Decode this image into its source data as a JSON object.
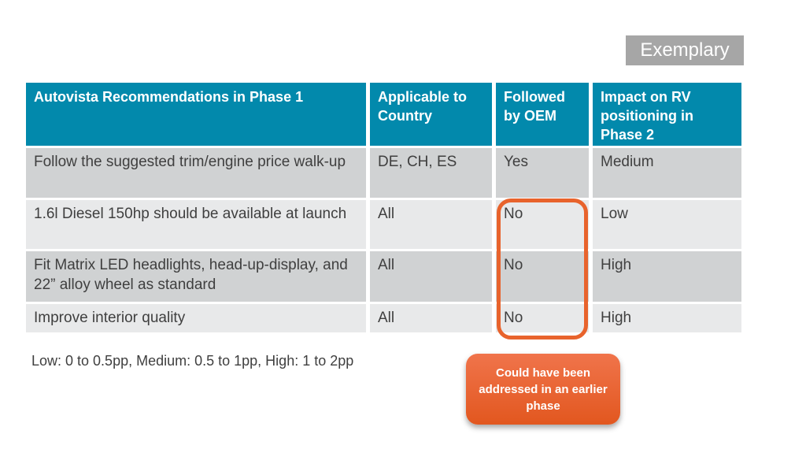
{
  "badge": {
    "label": "Exemplary"
  },
  "table": {
    "headers": [
      "Autovista Recommendations in Phase 1",
      "Applicable to Country",
      "Followed by OEM",
      "Impact on RV positioning in Phase 2"
    ],
    "rows": [
      [
        "Follow the suggested trim/engine price walk-up",
        "DE, CH, ES",
        "Yes",
        "Medium"
      ],
      [
        "1.6l Diesel 150hp should be available at launch",
        "All",
        "No",
        "Low"
      ],
      [
        "Fit Matrix LED headlights, head-up-display, and 22” alloy wheel as standard",
        "All",
        "No",
        "High"
      ],
      [
        "Improve interior quality",
        "All",
        "No",
        "High"
      ]
    ]
  },
  "footnote": "Low: 0 to 0.5pp, Medium: 0.5 to 1pp, High: 1 to 2pp",
  "callout": {
    "text": "Could have been addressed in an earlier phase"
  },
  "colors": {
    "header_bg": "#0289AC",
    "row_dark": "#D0D2D3",
    "row_light": "#E8E9EA",
    "accent_orange": "#E8632C",
    "badge_bg": "#A6A6A6",
    "callout_gradient_top": "#F0744B",
    "callout_gradient_bottom": "#E2571F"
  }
}
